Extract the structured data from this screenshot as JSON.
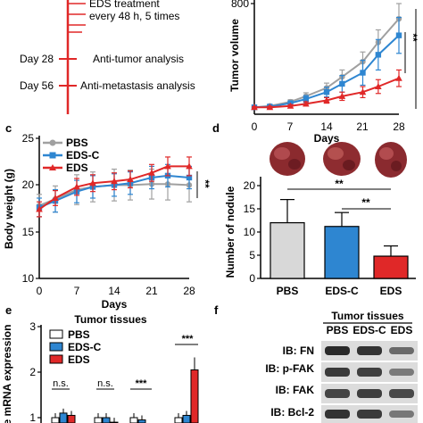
{
  "panel_a": {
    "treatment": "EDS treatment",
    "treatment_detail": "every 48 h, 5 times",
    "timeline": [
      {
        "day": "Day 28",
        "event": "Anti-tumor analysis"
      },
      {
        "day": "Day 56",
        "event": "Anti-metastasis analysis"
      }
    ]
  },
  "panel_labels": {
    "c": "c",
    "d": "d",
    "e": "e",
    "f": "f"
  },
  "colors": {
    "pbs": "#a0a0a0",
    "edsc": "#2e86d1",
    "eds": "#e02828"
  },
  "chart_data": [
    {
      "id": "tumor-volume",
      "type": "line",
      "ylabel": "Tumor volume",
      "xlabel": "Days",
      "x": [
        0,
        3,
        7,
        10,
        14,
        17,
        21,
        24,
        28
      ],
      "xticks": [
        "0",
        "7",
        "14",
        "21",
        "28"
      ],
      "ytick_top": "800",
      "ylim": [
        0,
        800
      ],
      "series": [
        {
          "key": "pbs",
          "values": [
            50,
            60,
            90,
            130,
            190,
            270,
            380,
            520,
            690
          ],
          "err": [
            5,
            10,
            15,
            25,
            35,
            50,
            70,
            90,
            110
          ]
        },
        {
          "key": "edsc",
          "values": [
            50,
            55,
            80,
            110,
            160,
            220,
            300,
            430,
            570
          ],
          "err": [
            5,
            10,
            15,
            25,
            35,
            60,
            90,
            110,
            130
          ]
        },
        {
          "key": "eds",
          "values": [
            50,
            50,
            60,
            75,
            100,
            130,
            160,
            200,
            260
          ],
          "err": [
            5,
            8,
            10,
            15,
            20,
            30,
            40,
            50,
            60
          ]
        }
      ],
      "significance": [
        "**",
        "***"
      ]
    },
    {
      "id": "body-weight",
      "type": "line",
      "ylabel": "Body weight (g)",
      "xlabel": "Days",
      "x": [
        0,
        3,
        7,
        10,
        14,
        17,
        21,
        24,
        28
      ],
      "xticks": [
        "0",
        "7",
        "14",
        "21",
        "28"
      ],
      "yticks": [
        "10",
        "15",
        "20",
        "25"
      ],
      "ylim": [
        10,
        25
      ],
      "legend": [
        "PBS",
        "EDS-C",
        "EDS"
      ],
      "series": [
        {
          "key": "pbs",
          "values": [
            17.8,
            18.5,
            19.5,
            19.8,
            20.0,
            20.0,
            20.1,
            20.1,
            20.0
          ],
          "err": [
            1.2,
            1.4,
            1.6,
            1.6,
            1.7,
            1.6,
            1.6,
            1.7,
            1.8
          ]
        },
        {
          "key": "edsc",
          "values": [
            17.6,
            18.3,
            19.3,
            19.8,
            20.0,
            20.2,
            20.8,
            21.0,
            20.8
          ],
          "err": [
            1.0,
            1.2,
            1.2,
            1.2,
            1.2,
            1.2,
            1.2,
            1.2,
            1.2
          ]
        },
        {
          "key": "eds",
          "values": [
            17.4,
            18.6,
            19.8,
            20.2,
            20.4,
            20.6,
            21.3,
            22.0,
            22.0
          ],
          "err": [
            0.8,
            0.8,
            0.9,
            0.9,
            0.9,
            0.9,
            0.9,
            1.0,
            1.0
          ]
        }
      ],
      "significance": [
        "**"
      ]
    },
    {
      "id": "nodules",
      "type": "bar",
      "ylabel": "Number of nodule",
      "categories": [
        "PBS",
        "EDS-C",
        "EDS"
      ],
      "values": [
        12,
        11.2,
        4.8
      ],
      "err": [
        5,
        3,
        2.2
      ],
      "yticks": [
        "0",
        "5",
        "10",
        "15",
        "20"
      ],
      "ylim": [
        0,
        22
      ],
      "significance": [
        "**",
        "**"
      ]
    },
    {
      "id": "mrna",
      "type": "bar",
      "title": "Tumor tissues",
      "ylabel": "e mRNA expression",
      "yticks": [
        "1",
        "2",
        "3"
      ],
      "legend": [
        "PBS",
        "EDS-C",
        "EDS"
      ],
      "groups": [
        {
          "values": [
            1.0,
            1.1,
            1.05
          ],
          "sig": "n.s."
        },
        {
          "values": [
            1.0,
            1.0,
            0.9
          ],
          "sig": "n.s."
        },
        {
          "values": [
            1.0,
            0.95,
            0.7
          ],
          "sig": "***"
        },
        {
          "values": [
            1.0,
            1.05,
            2.05
          ],
          "sig": "***"
        }
      ]
    }
  ],
  "blot": {
    "title": "Tumor tissues",
    "lanes": [
      "PBS",
      "EDS-C",
      "EDS"
    ],
    "rows": [
      "IB: FN",
      "IB: p-FAK",
      "IB: FAK",
      "IB: Bcl-2"
    ]
  }
}
